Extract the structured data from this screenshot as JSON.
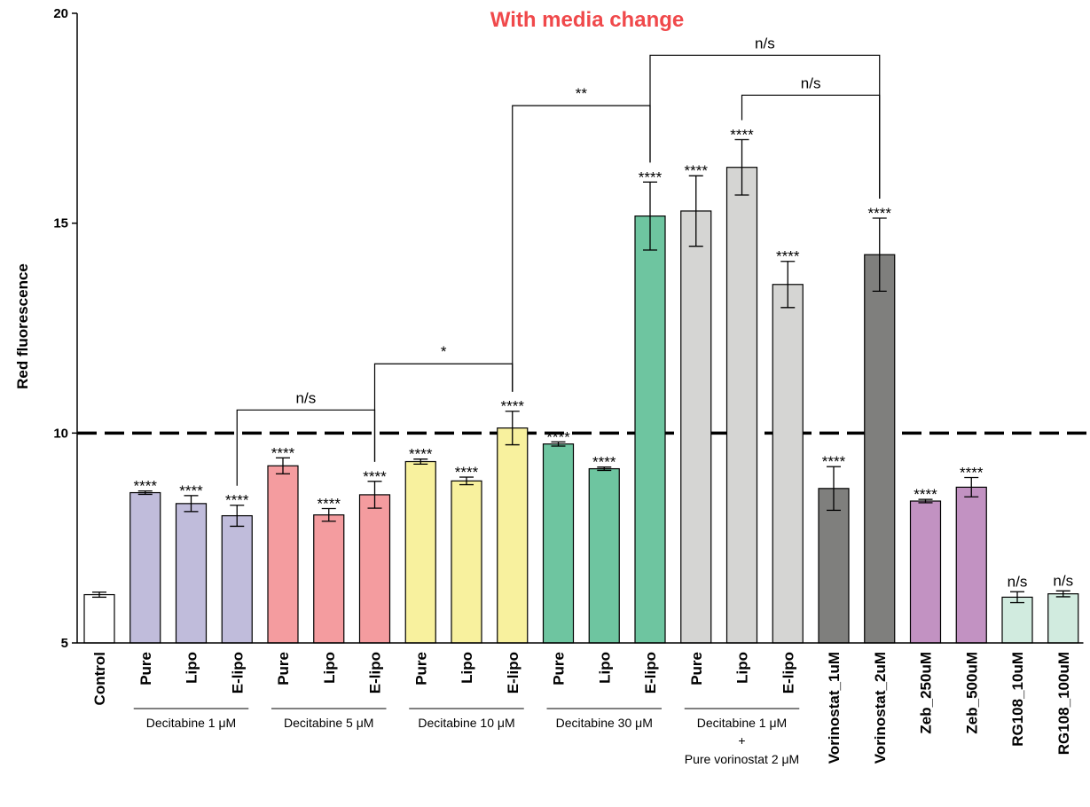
{
  "chart_data": {
    "type": "bar",
    "title": "With media change",
    "title_color": "#f0494b",
    "ylabel": "Red fluorescence",
    "ylim": [
      5,
      20
    ],
    "yticks": [
      "5",
      "10",
      "15",
      "20"
    ],
    "reference_line": 10,
    "categories": [
      "Control",
      "Pure",
      "Lipo",
      "E-lipo",
      "Pure",
      "Lipo",
      "E-lipo",
      "Pure",
      "Lipo",
      "E-lipo",
      "Pure",
      "Lipo",
      "E-lipo",
      "Pure",
      "Lipo",
      "E-lipo",
      "Vorinostat_1uM",
      "Vorinostat_2uM",
      "Zeb_250uM",
      "Zeb_500uM",
      "RG108_10uM",
      "RG108_100uM"
    ],
    "values": [
      6.15,
      8.58,
      8.32,
      8.03,
      9.22,
      8.05,
      8.53,
      9.32,
      8.86,
      10.12,
      9.74,
      9.15,
      15.17,
      15.29,
      16.33,
      13.54,
      8.68,
      14.25,
      8.38,
      8.71,
      6.09,
      6.17
    ],
    "errors": [
      0.06,
      0.04,
      0.19,
      0.25,
      0.19,
      0.15,
      0.32,
      0.06,
      0.09,
      0.4,
      0.05,
      0.04,
      0.81,
      0.84,
      0.66,
      0.55,
      0.52,
      0.87,
      0.04,
      0.23,
      0.13,
      0.07
    ],
    "significance": [
      "",
      "****",
      "****",
      "****",
      "****",
      "****",
      "****",
      "****",
      "****",
      "****",
      "****",
      "****",
      "****",
      "****",
      "****",
      "****",
      "****",
      "****",
      "****",
      "****",
      "n/s",
      "n/s"
    ],
    "colors": [
      "#ffffff",
      "#c0bcdb",
      "#c0bcdb",
      "#c0bcdb",
      "#f49c9f",
      "#f49c9f",
      "#f49c9f",
      "#f8f19e",
      "#f8f19e",
      "#f8f19e",
      "#6ec5a0",
      "#6ec5a0",
      "#6ec5a0",
      "#d5d5d3",
      "#d5d5d3",
      "#d5d5d3",
      "#7f7f7d",
      "#7f7f7d",
      "#c292c2",
      "#c292c2",
      "#d1ebdf",
      "#d1ebdf"
    ],
    "groups": [
      {
        "label": "Decitabine 1 μM",
        "from": 1,
        "to": 3
      },
      {
        "label": "Decitabine 5 μM",
        "from": 4,
        "to": 6
      },
      {
        "label": "Decitabine 10 μM",
        "from": 7,
        "to": 9
      },
      {
        "label": "Decitabine 30 μM",
        "from": 10,
        "to": 12
      },
      {
        "label": "Decitabine 1 μM",
        "label2": "+",
        "label3": "Pure vorinostat 2 μM",
        "from": 13,
        "to": 15
      }
    ],
    "comparisons": [
      {
        "label": "n/s",
        "a": 3,
        "b": 6,
        "level": 10.55
      },
      {
        "label": "*",
        "a": 6,
        "b": 9,
        "level": 11.65
      },
      {
        "label": "**",
        "a": 9,
        "b": 12,
        "level": 17.8
      },
      {
        "label": "n/s",
        "a": 14,
        "b": 17,
        "level": 18.05
      },
      {
        "label": "n/s",
        "a": 12,
        "b": 17,
        "level": 19.0
      }
    ]
  }
}
